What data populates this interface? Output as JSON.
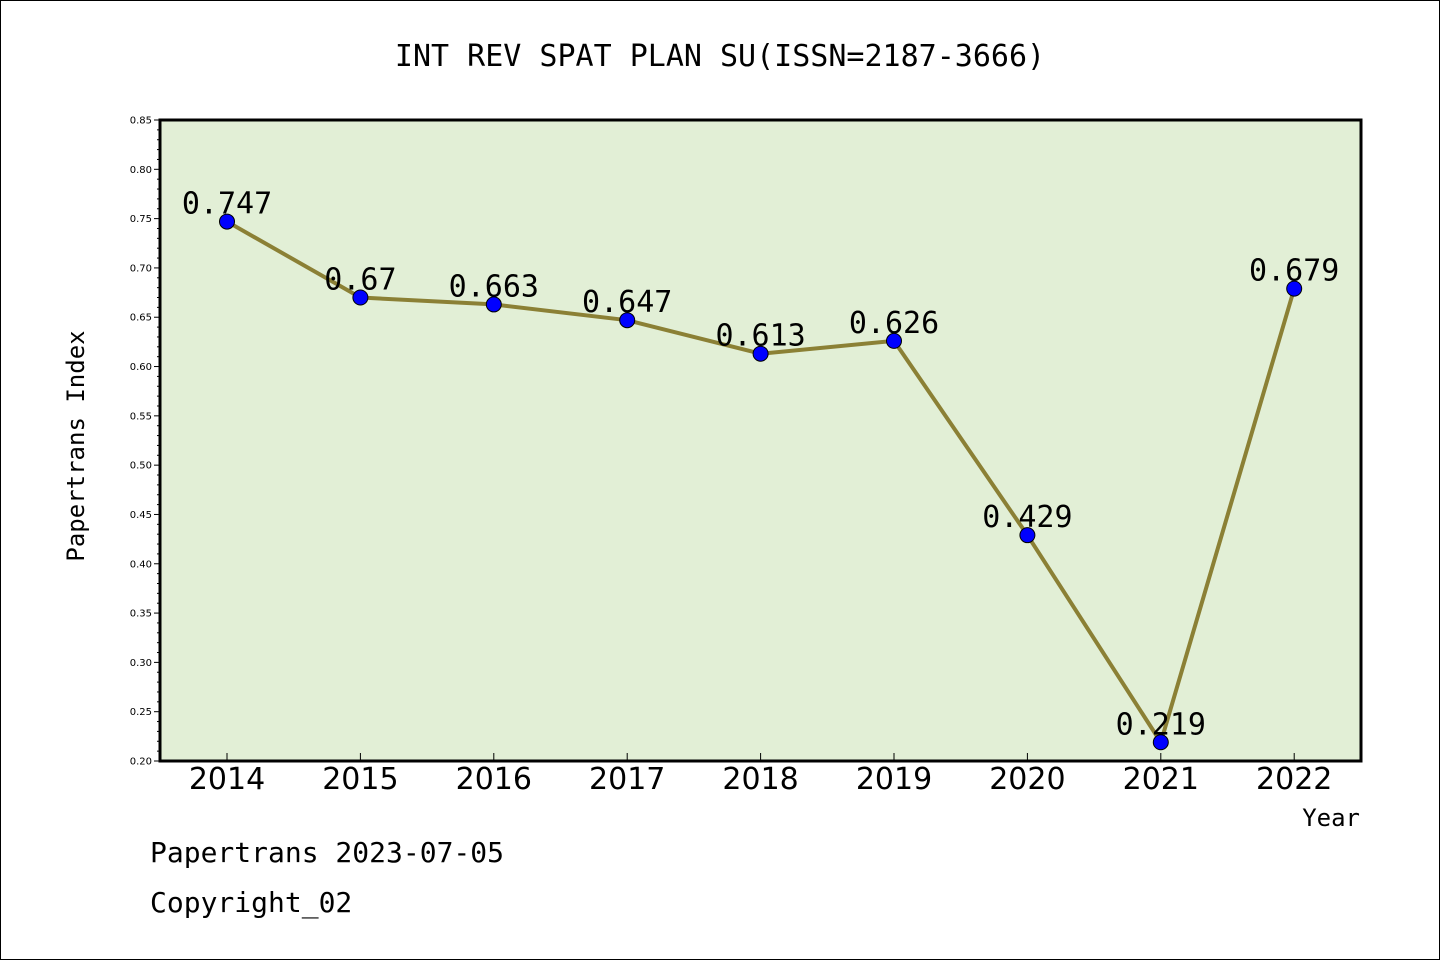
{
  "chart_data": {
    "type": "line",
    "title": "INT REV SPAT PLAN SU(ISSN=2187-3666)",
    "xlabel": "Year",
    "ylabel": "Papertrans Index",
    "categories": [
      "2014",
      "2015",
      "2016",
      "2017",
      "2018",
      "2019",
      "2020",
      "2021",
      "2022"
    ],
    "series": [
      {
        "values": [
          0.747,
          0.67,
          0.663,
          0.647,
          0.613,
          0.626,
          0.429,
          0.219,
          0.679
        ],
        "labels": [
          "0.747",
          "0.67",
          "0.663",
          "0.647",
          "0.613",
          "0.626",
          "0.429",
          "0.219",
          "0.679"
        ]
      }
    ],
    "ylim": [
      0.2,
      0.85
    ],
    "yticks": [
      "0.20",
      "0.25",
      "0.30",
      "0.35",
      "0.40",
      "0.45",
      "0.50",
      "0.55",
      "0.60",
      "0.65",
      "0.70",
      "0.75",
      "0.80",
      "0.85"
    ],
    "grid": false,
    "colors": {
      "plot_background": "#e2efd6",
      "line": "#8b8035",
      "marker": "#0000ff"
    }
  },
  "footer": {
    "date_line": "Papertrans 2023-07-05",
    "copyright": "Copyright_02"
  }
}
